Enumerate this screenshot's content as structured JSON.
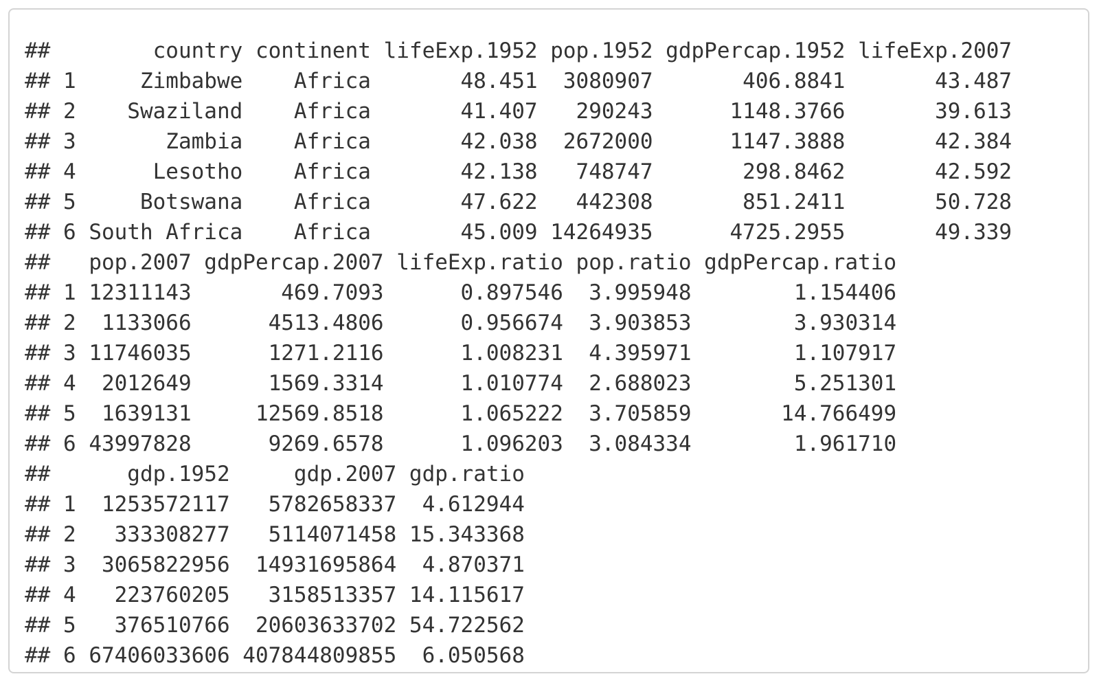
{
  "output": {
    "lines": [
      "##        country continent lifeExp.1952 pop.1952 gdpPercap.1952 lifeExp.2007",
      "## 1     Zimbabwe    Africa       48.451  3080907       406.8841       43.487",
      "## 2    Swaziland    Africa       41.407   290243      1148.3766       39.613",
      "## 3       Zambia    Africa       42.038  2672000      1147.3888       42.384",
      "## 4      Lesotho    Africa       42.138   748747       298.8462       42.592",
      "## 5     Botswana    Africa       47.622   442308       851.2411       50.728",
      "## 6 South Africa    Africa       45.009 14264935      4725.2955       49.339",
      "##   pop.2007 gdpPercap.2007 lifeExp.ratio pop.ratio gdpPercap.ratio",
      "## 1 12311143       469.7093      0.897546  3.995948        1.154406",
      "## 2  1133066      4513.4806      0.956674  3.903853        3.930314",
      "## 3 11746035      1271.2116      1.008231  4.395971        1.107917",
      "## 4  2012649      1569.3314      1.010774  2.688023        5.251301",
      "## 5  1639131     12569.8518      1.065222  3.705859       14.766499",
      "## 6 43997828      9269.6578      1.096203  3.084334        1.961710",
      "##      gdp.1952     gdp.2007 gdp.ratio",
      "## 1  1253572117   5782658337  4.612944",
      "## 2   333308277   5114071458 15.343368",
      "## 3  3065822956  14931695864  4.870371",
      "## 4   223760205   3158513357 14.115617",
      "## 5   376510766  20603633702 54.722562",
      "## 6 67406033606 407844809855  6.050568"
    ]
  }
}
